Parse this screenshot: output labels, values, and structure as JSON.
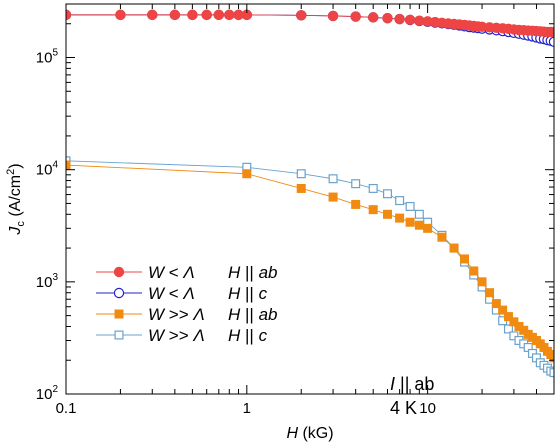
{
  "chart_data": {
    "type": "scatter",
    "title": "",
    "xlabel": {
      "main": "H",
      "unit": "(kG)"
    },
    "ylabel": {
      "main": "J",
      "sub": "c",
      "unit": "(A/cm",
      "sup": "2",
      "close": ")"
    },
    "x_scale": "log",
    "y_scale": "log",
    "xlim": [
      0.1,
      50
    ],
    "ylim": [
      100,
      300000
    ],
    "x_ticks": [
      {
        "value": 0.1,
        "label": "0.1"
      },
      {
        "value": 1,
        "label": "1"
      },
      {
        "value": 10,
        "label": "10"
      }
    ],
    "y_ticks": [
      {
        "value": 100,
        "base": "10",
        "exp": "2"
      },
      {
        "value": 1000,
        "base": "10",
        "exp": "3"
      },
      {
        "value": 10000,
        "base": "10",
        "exp": "4"
      },
      {
        "value": 100000,
        "base": "10",
        "exp": "5"
      }
    ],
    "grid": false,
    "legend_position": "bottom-left",
    "annotation": {
      "line1_italic": "I",
      "line1_rest": " || ab",
      "line2": "4 K"
    },
    "series": [
      {
        "name": "W < Λ   H || ab",
        "legend": {
          "w": "W",
          "rel": " < ",
          "lam": "Λ",
          "h": "H",
          "par": " || ",
          "dir": "ab"
        },
        "color": "#ee4444",
        "marker": "circle",
        "filled": true,
        "x": [
          0.1,
          0.2,
          0.3,
          0.4,
          0.5,
          0.6,
          0.7,
          0.8,
          0.9,
          1,
          2,
          3,
          4,
          5,
          6,
          7,
          8,
          9,
          10,
          11,
          12,
          13,
          14,
          15,
          16,
          17,
          18,
          19,
          20,
          22,
          24,
          26,
          28,
          30,
          32,
          34,
          36,
          38,
          40,
          42,
          44,
          46,
          48,
          50
        ],
        "y": [
          240000,
          240000,
          240000,
          240000,
          240000,
          240000,
          240000,
          240000,
          240000,
          240000,
          238000,
          235000,
          232000,
          228000,
          224000,
          220000,
          217000,
          213000,
          210000,
          207000,
          204000,
          201000,
          199000,
          197000,
          195000,
          193000,
          191000,
          189000,
          188000,
          186000,
          184000,
          182000,
          180000,
          178000,
          176000,
          175000,
          174000,
          173000,
          172000,
          171000,
          170000,
          169000,
          169000,
          168000
        ]
      },
      {
        "name": "W < Λ   H || c",
        "legend": {
          "w": "W",
          "rel": " < ",
          "lam": "Λ",
          "h": "H",
          "par": " || ",
          "dir": "c"
        },
        "color": "#2222cc",
        "marker": "circle",
        "filled": false,
        "x": [
          0.1,
          0.2,
          0.3,
          0.4,
          0.5,
          0.6,
          0.7,
          0.8,
          0.9,
          1,
          2,
          3,
          4,
          5,
          6,
          7,
          8,
          9,
          10,
          11,
          12,
          13,
          14,
          15,
          16,
          17,
          18,
          19,
          20,
          22,
          24,
          26,
          28,
          30,
          32,
          34,
          36,
          38,
          40,
          42,
          44,
          46,
          48,
          50
        ],
        "y": [
          240000,
          240000,
          240000,
          240000,
          240000,
          240000,
          240000,
          240000,
          240000,
          240000,
          238000,
          235000,
          232000,
          228000,
          224000,
          220000,
          216000,
          212000,
          208000,
          205000,
          202000,
          199000,
          196000,
          193000,
          190000,
          187000,
          185000,
          183000,
          181000,
          178000,
          175000,
          172000,
          169000,
          166000,
          163000,
          160000,
          157000,
          154000,
          151000,
          148000,
          146000,
          143000,
          141000,
          138000
        ]
      },
      {
        "name": "W >> Λ  H || ab",
        "legend": {
          "w": "W",
          "rel": " >> ",
          "lam": "Λ",
          "h": "H",
          "par": " || ",
          "dir": "ab"
        },
        "color": "#f08a10",
        "marker": "square",
        "filled": true,
        "x": [
          0.1,
          1,
          2,
          3,
          4,
          5,
          6,
          7,
          8,
          9,
          10,
          12,
          14,
          16,
          18,
          20,
          22,
          24,
          26,
          28,
          30,
          32,
          34,
          36,
          38,
          40,
          42,
          44,
          46,
          48,
          50
        ],
        "y": [
          11000,
          9200,
          6800,
          5700,
          4900,
          4400,
          4000,
          3700,
          3400,
          3200,
          3000,
          2500,
          2000,
          1600,
          1250,
          1000,
          800,
          640,
          560,
          490,
          440,
          400,
          370,
          340,
          320,
          300,
          280,
          260,
          240,
          225,
          210
        ]
      },
      {
        "name": "W >> Λ  H || c",
        "legend": {
          "w": "W",
          "rel": " >> ",
          "lam": "Λ",
          "h": "H",
          "par": " || ",
          "dir": "c"
        },
        "color": "#6aa2cc",
        "marker": "square",
        "filled": false,
        "x": [
          0.1,
          1,
          2,
          3,
          4,
          5,
          6,
          7,
          8,
          9,
          10,
          12,
          14,
          16,
          18,
          20,
          22,
          24,
          26,
          28,
          30,
          32,
          34,
          36,
          38,
          40,
          42,
          44,
          46,
          48,
          50
        ],
        "y": [
          12000,
          10500,
          9200,
          8300,
          7500,
          6800,
          6100,
          5300,
          4700,
          4000,
          3400,
          2600,
          2000,
          1500,
          1150,
          900,
          700,
          560,
          450,
          380,
          330,
          300,
          280,
          260,
          230,
          210,
          190,
          180,
          170,
          160,
          155
        ]
      }
    ]
  }
}
